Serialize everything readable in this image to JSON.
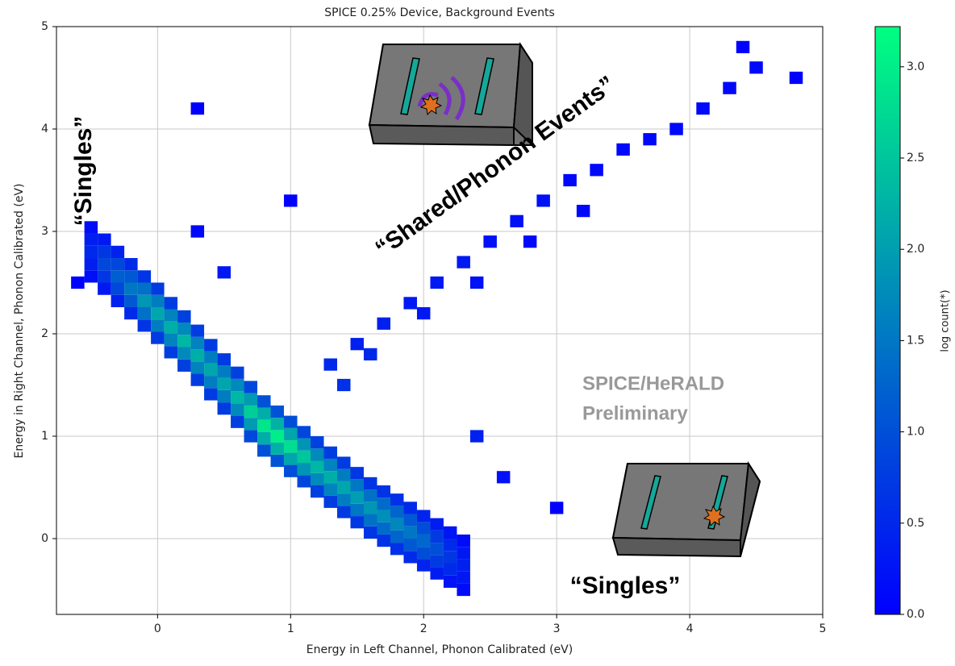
{
  "chart_data": {
    "type": "heatmap",
    "title": "SPICE 0.25% Device, Background Events",
    "x_label": "Energy in Left Channel, Phonon Calibrated (eV)",
    "y_label": "Energy in Right Channel, Phonon Calibrated (eV)",
    "colorbar_label": "log count(*)",
    "colormap": [
      "#0000ff",
      "#00ff80"
    ],
    "xlim": [
      -0.76,
      5
    ],
    "ylim": [
      -0.74,
      5
    ],
    "clim": [
      0,
      3.22
    ],
    "xticks": [
      0,
      1,
      2,
      3,
      4,
      5
    ],
    "yticks": [
      0,
      1,
      2,
      3,
      4,
      5
    ],
    "cticks": [
      {
        "value": 0,
        "label": "0.0"
      },
      {
        "value": 0.5,
        "label": "0.5"
      },
      {
        "value": 1,
        "label": "1.0"
      },
      {
        "value": 1.5,
        "label": "1.5"
      },
      {
        "value": 2,
        "label": "2.0"
      },
      {
        "value": 2.5,
        "label": "2.5"
      },
      {
        "value": 3,
        "label": "3.0"
      }
    ],
    "grid": true,
    "annotations": [
      "“Singles”",
      "“Shared/Phonon Events”",
      "“Singles”",
      "SPICE/HeRALD",
      "Preliminary"
    ],
    "x": [
      -0.5,
      -0.5,
      -0.5,
      -0.5,
      -0.5,
      -0.4,
      -0.4,
      -0.4,
      -0.4,
      -0.4,
      -0.3,
      -0.3,
      -0.3,
      -0.3,
      -0.3,
      -0.2,
      -0.2,
      -0.2,
      -0.2,
      -0.2,
      -0.1,
      -0.1,
      -0.1,
      -0.1,
      -0.1,
      0,
      0,
      0,
      0,
      0,
      0.1,
      0.1,
      0.1,
      0.1,
      0.1,
      0.2,
      0.2,
      0.2,
      0.2,
      0.2,
      0.3,
      0.3,
      0.3,
      0.3,
      0.3,
      0.4,
      0.4,
      0.4,
      0.4,
      0.4,
      0.5,
      0.5,
      0.5,
      0.5,
      0.5,
      0.6,
      0.6,
      0.6,
      0.6,
      0.6,
      0.7,
      0.7,
      0.7,
      0.7,
      0.7,
      0.8,
      0.8,
      0.8,
      0.8,
      0.8,
      0.9,
      0.9,
      0.9,
      0.9,
      0.9,
      1,
      1,
      1,
      1,
      1,
      1.1,
      1.1,
      1.1,
      1.1,
      1.1,
      1.2,
      1.2,
      1.2,
      1.2,
      1.2,
      1.3,
      1.3,
      1.3,
      1.3,
      1.3,
      1.4,
      1.4,
      1.4,
      1.4,
      1.4,
      1.5,
      1.5,
      1.5,
      1.5,
      1.5,
      1.6,
      1.6,
      1.6,
      1.6,
      1.6,
      1.7,
      1.7,
      1.7,
      1.7,
      1.7,
      1.8,
      1.8,
      1.8,
      1.8,
      1.8,
      1.9,
      1.9,
      1.9,
      1.9,
      1.9,
      2,
      2,
      2,
      2,
      2,
      2.1,
      2.1,
      2.1,
      2.1,
      2.1,
      2.2,
      2.2,
      2.2,
      2.2,
      2.2,
      2.3,
      2.3,
      2.3,
      2.3,
      2.3,
      1.3,
      1.5,
      1.7,
      1.9,
      2.1,
      2.3,
      2.5,
      2.7,
      2.9,
      3.1,
      3.3,
      3.5,
      3.7,
      3.9,
      4.1,
      4.3,
      4.5,
      1.4,
      1.6,
      2,
      2.4,
      2.8,
      3.2,
      4.8,
      4.4,
      0.5,
      0.3,
      -0.6,
      1,
      2.4,
      2.6,
      3,
      0.3
    ],
    "y": [
      2.56,
      2.68,
      2.8,
      2.92,
      3.04,
      2.44,
      2.56,
      2.68,
      2.8,
      2.92,
      2.32,
      2.44,
      2.56,
      2.68,
      2.8,
      2.2,
      2.32,
      2.44,
      2.56,
      2.68,
      2.08,
      2.2,
      2.32,
      2.44,
      2.56,
      1.96,
      2.08,
      2.2,
      2.32,
      2.44,
      1.82,
      1.94,
      2.06,
      2.18,
      2.3,
      1.69,
      1.81,
      1.93,
      2.05,
      2.17,
      1.55,
      1.67,
      1.79,
      1.91,
      2.03,
      1.41,
      1.53,
      1.65,
      1.77,
      1.89,
      1.27,
      1.39,
      1.51,
      1.63,
      1.75,
      1.14,
      1.26,
      1.38,
      1.5,
      1.62,
      1,
      1.12,
      1.24,
      1.36,
      1.48,
      0.86,
      0.98,
      1.1,
      1.22,
      1.34,
      0.76,
      0.88,
      1,
      1.12,
      1.24,
      0.66,
      0.78,
      0.9,
      1.02,
      1.14,
      0.56,
      0.68,
      0.8,
      0.92,
      1.04,
      0.46,
      0.58,
      0.7,
      0.82,
      0.94,
      0.36,
      0.48,
      0.6,
      0.72,
      0.84,
      0.26,
      0.38,
      0.5,
      0.62,
      0.74,
      0.16,
      0.28,
      0.4,
      0.52,
      0.64,
      0.06,
      0.18,
      0.3,
      0.42,
      0.54,
      -0.02,
      0.1,
      0.22,
      0.34,
      0.46,
      -0.1,
      0.02,
      0.14,
      0.26,
      0.38,
      -0.18,
      -0.06,
      0.06,
      0.18,
      0.3,
      -0.26,
      -0.14,
      -0.02,
      0.1,
      0.22,
      -0.34,
      -0.22,
      -0.1,
      0.02,
      0.14,
      -0.42,
      -0.3,
      -0.18,
      -0.06,
      0.06,
      -0.5,
      -0.38,
      -0.26,
      -0.14,
      -0.02,
      1.7,
      1.9,
      2.1,
      2.3,
      2.5,
      2.7,
      2.9,
      3.1,
      3.3,
      3.5,
      3.6,
      3.8,
      3.9,
      4,
      4.2,
      4.4,
      4.6,
      1.5,
      1.8,
      2.2,
      2.5,
      2.9,
      3.2,
      4.5,
      4.8,
      2.6,
      3,
      2.5,
      3.3,
      1,
      0.6,
      0.3,
      4.2
    ],
    "values": [
      0.18,
      0.38,
      0.5,
      0.38,
      0.18,
      0.32,
      0.68,
      0.9,
      0.68,
      0.32,
      0.42,
      0.9,
      1.2,
      0.9,
      0.42,
      0.53,
      1.13,
      1.5,
      1.13,
      0.53,
      0.67,
      1.43,
      1.9,
      1.43,
      0.67,
      0.74,
      1.58,
      2.1,
      1.58,
      0.74,
      0.77,
      1.65,
      2.2,
      1.65,
      0.77,
      0.81,
      1.73,
      2.3,
      1.73,
      0.81,
      0.77,
      1.65,
      2.2,
      1.65,
      0.77,
      0.74,
      1.58,
      2.1,
      1.58,
      0.74,
      0.74,
      1.58,
      2.1,
      1.58,
      0.74,
      0.81,
      1.73,
      2.3,
      1.73,
      0.81,
      0.91,
      1.95,
      2.6,
      1.95,
      0.91,
      1.02,
      2.18,
      2.9,
      2.18,
      1.02,
      1.05,
      2.25,
      3,
      2.25,
      1.05,
      0.98,
      2.1,
      2.8,
      2.1,
      0.98,
      0.88,
      1.88,
      2.5,
      1.88,
      0.88,
      0.81,
      1.73,
      2.3,
      1.73,
      0.81,
      0.77,
      1.65,
      2.2,
      1.65,
      0.77,
      0.74,
      1.58,
      2.1,
      1.58,
      0.74,
      0.7,
      1.5,
      2,
      1.5,
      0.7,
      0.67,
      1.43,
      1.9,
      1.43,
      0.67,
      0.63,
      1.35,
      1.8,
      1.35,
      0.63,
      0.6,
      1.28,
      1.7,
      1.28,
      0.6,
      0.53,
      1.13,
      1.5,
      1.13,
      0.53,
      0.46,
      0.98,
      1.3,
      0.98,
      0.46,
      0.35,
      0.75,
      1,
      0.75,
      0.35,
      0.25,
      0.53,
      0.7,
      0.53,
      0.25,
      0.14,
      0.3,
      0.4,
      0.3,
      0.14,
      0.5,
      0.4,
      0.4,
      0.3,
      0.3,
      0.3,
      0.2,
      0.2,
      0.2,
      0.1,
      0.1,
      0.1,
      0.1,
      0.1,
      0.1,
      0.1,
      0.1,
      0.6,
      0.5,
      0.3,
      0.2,
      0.1,
      0.1,
      0,
      0,
      0.3,
      0.1,
      0,
      0,
      0.4,
      0.2,
      0,
      0
    ]
  }
}
